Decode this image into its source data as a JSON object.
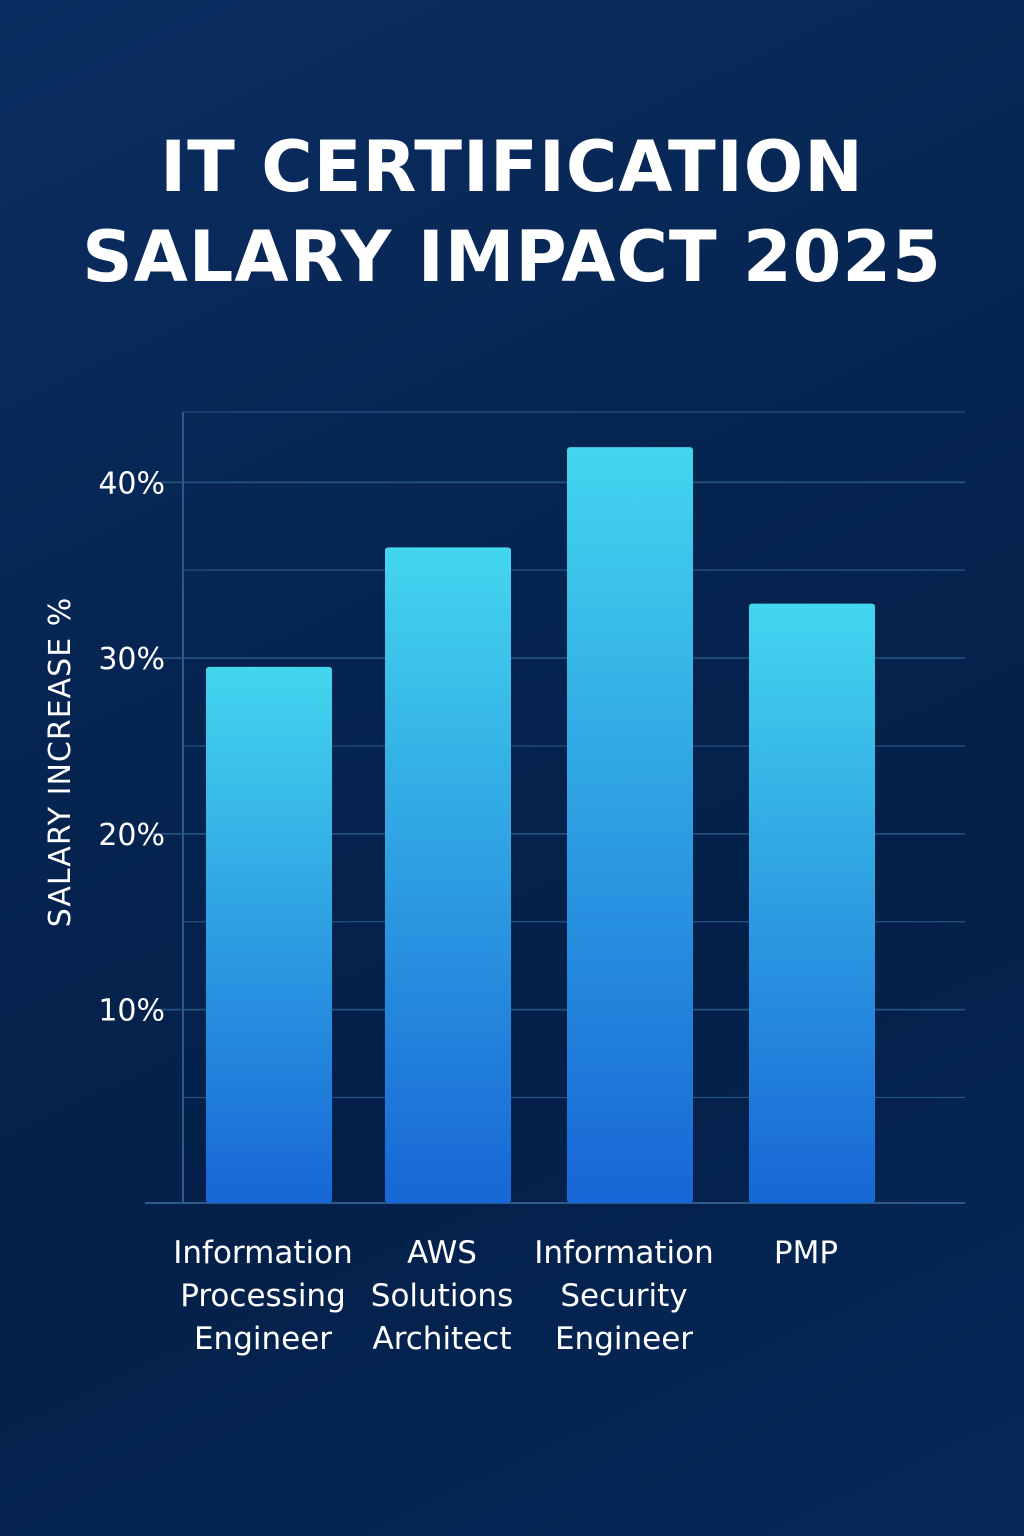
{
  "title_lines": [
    "IT CERTIFICATION",
    "SALARY IMPACT 2025"
  ],
  "colors": {
    "bar_top": "#43d6ee",
    "bar_bottom": "#1766d6",
    "grid": "#24507e",
    "axis": "#2c5a8a"
  },
  "chart_data": {
    "type": "bar",
    "title": "IT CERTIFICATION SALARY IMPACT 2025",
    "xlabel": "",
    "ylabel": "SALARY INCREASE %",
    "categories": [
      "Information Processing Engineer",
      "AWS Solutions Architect",
      "Information Security Engineer",
      "PMP"
    ],
    "category_lines": [
      [
        "Information",
        "Processing",
        "Engineer"
      ],
      [
        "AWS",
        "Solutions",
        "Architect"
      ],
      [
        "Information",
        "Security",
        "Engineer"
      ],
      [
        "PMP"
      ]
    ],
    "values": [
      29.5,
      36.3,
      42.0,
      33.1
    ],
    "ylim": [
      -1,
      44
    ],
    "yticks": [
      10,
      20,
      30,
      40
    ],
    "ytick_labels": [
      "10%",
      "20%",
      "30%",
      "40%"
    ],
    "grid": true,
    "legend": "none"
  }
}
